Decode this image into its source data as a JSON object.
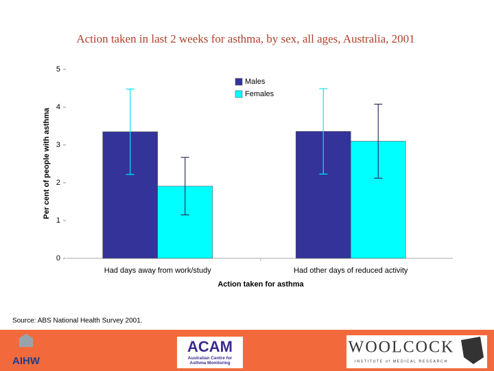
{
  "chart_data": {
    "type": "bar",
    "title": "Action taken in last 2 weeks for asthma, by sex, all ages, Australia, 2001",
    "x_label": "Action taken for asthma",
    "y_label": "Per cent of people with asthma",
    "categories": [
      "Had days away from work/study",
      "Had other days of reduced activity"
    ],
    "series": [
      {
        "name": "Males",
        "color": "#333399",
        "error_color": "#00e5ff",
        "values": [
          3.35,
          3.36
        ],
        "errors": [
          1.13,
          1.13
        ]
      },
      {
        "name": "Females",
        "color": "#00ffff",
        "error_color": "#333366",
        "values": [
          1.91,
          3.1
        ],
        "errors": [
          0.76,
          0.98
        ]
      }
    ],
    "ylim": [
      0,
      5
    ],
    "yticks": [
      0,
      1,
      2,
      3,
      4,
      5
    ],
    "grid": false,
    "legend": "upper right",
    "source": "Source: ABS National Health Survey 2001."
  },
  "logos": {
    "aihw": "AIHW",
    "acam": "ACAM",
    "acam_sub": "Australian Centre for Asthma Monitoring",
    "woolcock": "WOOLCOCK",
    "woolcock_sub": "INSTITUTE of MEDICAL RESEARCH"
  }
}
